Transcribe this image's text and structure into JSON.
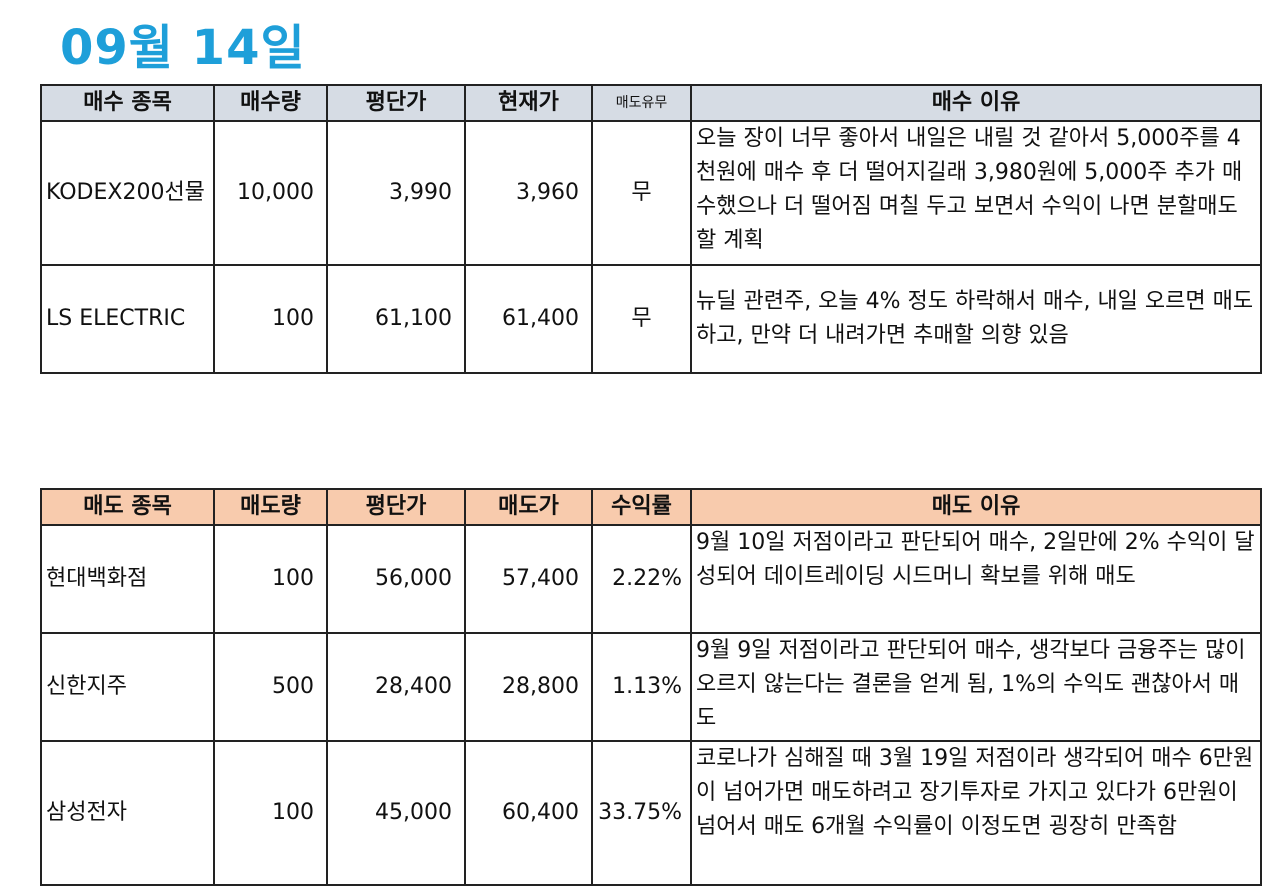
{
  "page_title": "09월 14일",
  "buy_table": {
    "headers": [
      "매수 종목",
      "매수량",
      "평단가",
      "현재가",
      "매도유무",
      "매수 이유"
    ],
    "rows": [
      {
        "name": "KODEX200선물",
        "qty": "10,000",
        "avg_price": "3,990",
        "current_price": "3,960",
        "sold": "무",
        "reason": "오늘 장이 너무 좋아서 내일은 내릴 것 같아서 5,000주를 4천원에 매수 후 더 떨어지길래 3,980원에 5,000주 추가 매수했으나 더 떨어짐 며칠 두고 보면서 수익이 나면 분할매도 할 계획"
      },
      {
        "name": "LS ELECTRIC",
        "qty": "100",
        "avg_price": "61,100",
        "current_price": "61,400",
        "sold": "무",
        "reason": "뉴딜 관련주, 오늘 4% 정도 하락해서 매수, 내일 오르면 매도하고, 만약 더 내려가면 추매할 의향 있음"
      }
    ]
  },
  "sell_table": {
    "headers": [
      "매도 종목",
      "매도량",
      "평단가",
      "매도가",
      "수익률",
      "매도 이유"
    ],
    "rows": [
      {
        "name": "현대백화점",
        "qty": "100",
        "avg_price": "56,000",
        "sell_price": "57,400",
        "return": "2.22%",
        "reason": "9월 10일 저점이라고 판단되어 매수, 2일만에 2% 수익이 달성되어 데이트레이딩 시드머니 확보를 위해 매도"
      },
      {
        "name": "신한지주",
        "qty": "500",
        "avg_price": "28,400",
        "sell_price": "28,800",
        "return": "1.13%",
        "reason": "9월 9일 저점이라고 판단되어 매수, 생각보다 금융주는 많이 오르지 않는다는 결론을 얻게 됨, 1%의 수익도 괜찮아서 매도"
      },
      {
        "name": "삼성전자",
        "qty": "100",
        "avg_price": "45,000",
        "sell_price": "60,400",
        "return": "33.75%",
        "reason": "코로나가 심해질 때 3월 19일 저점이라 생각되어 매수 6만원이 넘어가면 매도하려고 장기투자로 가지고 있다가 6만원이 넘어서 매도 6개월 수익률이 이정도면 굉장히 만족함"
      }
    ]
  }
}
